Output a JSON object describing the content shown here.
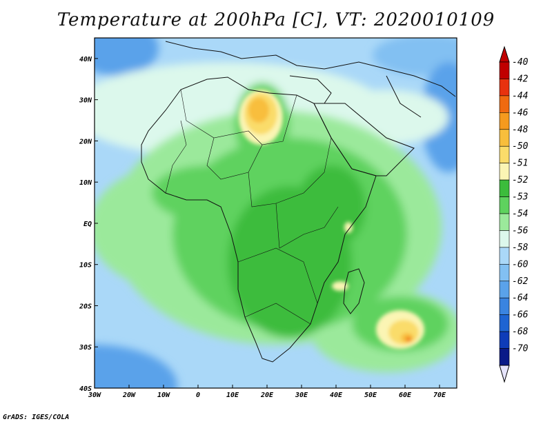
{
  "title": "Temperature at 200hPa [C], VT: 2020010109",
  "credit": "GrADS: IGES/COLA",
  "map": {
    "lon_range": [
      -30,
      75
    ],
    "lat_range": [
      -40,
      45
    ],
    "x_ticks": [
      {
        "value": -30,
        "label": "30W"
      },
      {
        "value": -20,
        "label": "20W"
      },
      {
        "value": -10,
        "label": "10W"
      },
      {
        "value": 0,
        "label": "0"
      },
      {
        "value": 10,
        "label": "10E"
      },
      {
        "value": 20,
        "label": "20E"
      },
      {
        "value": 30,
        "label": "30E"
      },
      {
        "value": 40,
        "label": "40E"
      },
      {
        "value": 50,
        "label": "50E"
      },
      {
        "value": 60,
        "label": "60E"
      },
      {
        "value": 70,
        "label": "70E"
      }
    ],
    "y_ticks": [
      {
        "value": 40,
        "label": "40N"
      },
      {
        "value": 30,
        "label": "30N"
      },
      {
        "value": 20,
        "label": "20N"
      },
      {
        "value": 10,
        "label": "10N"
      },
      {
        "value": 0,
        "label": "EQ"
      },
      {
        "value": -10,
        "label": "10S"
      },
      {
        "value": -20,
        "label": "20S"
      },
      {
        "value": -30,
        "label": "30S"
      },
      {
        "value": -40,
        "label": "40S"
      }
    ]
  },
  "colorbar": {
    "levels": [
      {
        "label": "-40",
        "color": "#c00000"
      },
      {
        "label": "-42",
        "color": "#e8320e"
      },
      {
        "label": "-44",
        "color": "#f06a10"
      },
      {
        "label": "-46",
        "color": "#f59a1e"
      },
      {
        "label": "-48",
        "color": "#f8be3c"
      },
      {
        "label": "-50",
        "color": "#fadc6a"
      },
      {
        "label": "-51",
        "color": "#fbf5b4"
      },
      {
        "label": "-52",
        "color": "#3cbc3c"
      },
      {
        "label": "-53",
        "color": "#5ed25e"
      },
      {
        "label": "-54",
        "color": "#9be99b"
      },
      {
        "label": "-56",
        "color": "#dcf8ec"
      },
      {
        "label": "-58",
        "color": "#aad8f8"
      },
      {
        "label": "-60",
        "color": "#82c0f2"
      },
      {
        "label": "-62",
        "color": "#5aa2ea"
      },
      {
        "label": "-64",
        "color": "#3a84e0"
      },
      {
        "label": "-66",
        "color": "#1e64d2"
      },
      {
        "label": "-68",
        "color": "#0e3cb8"
      },
      {
        "label": "-70",
        "color": "#0a1a88"
      }
    ],
    "under_color": "#e6e4fc"
  }
}
